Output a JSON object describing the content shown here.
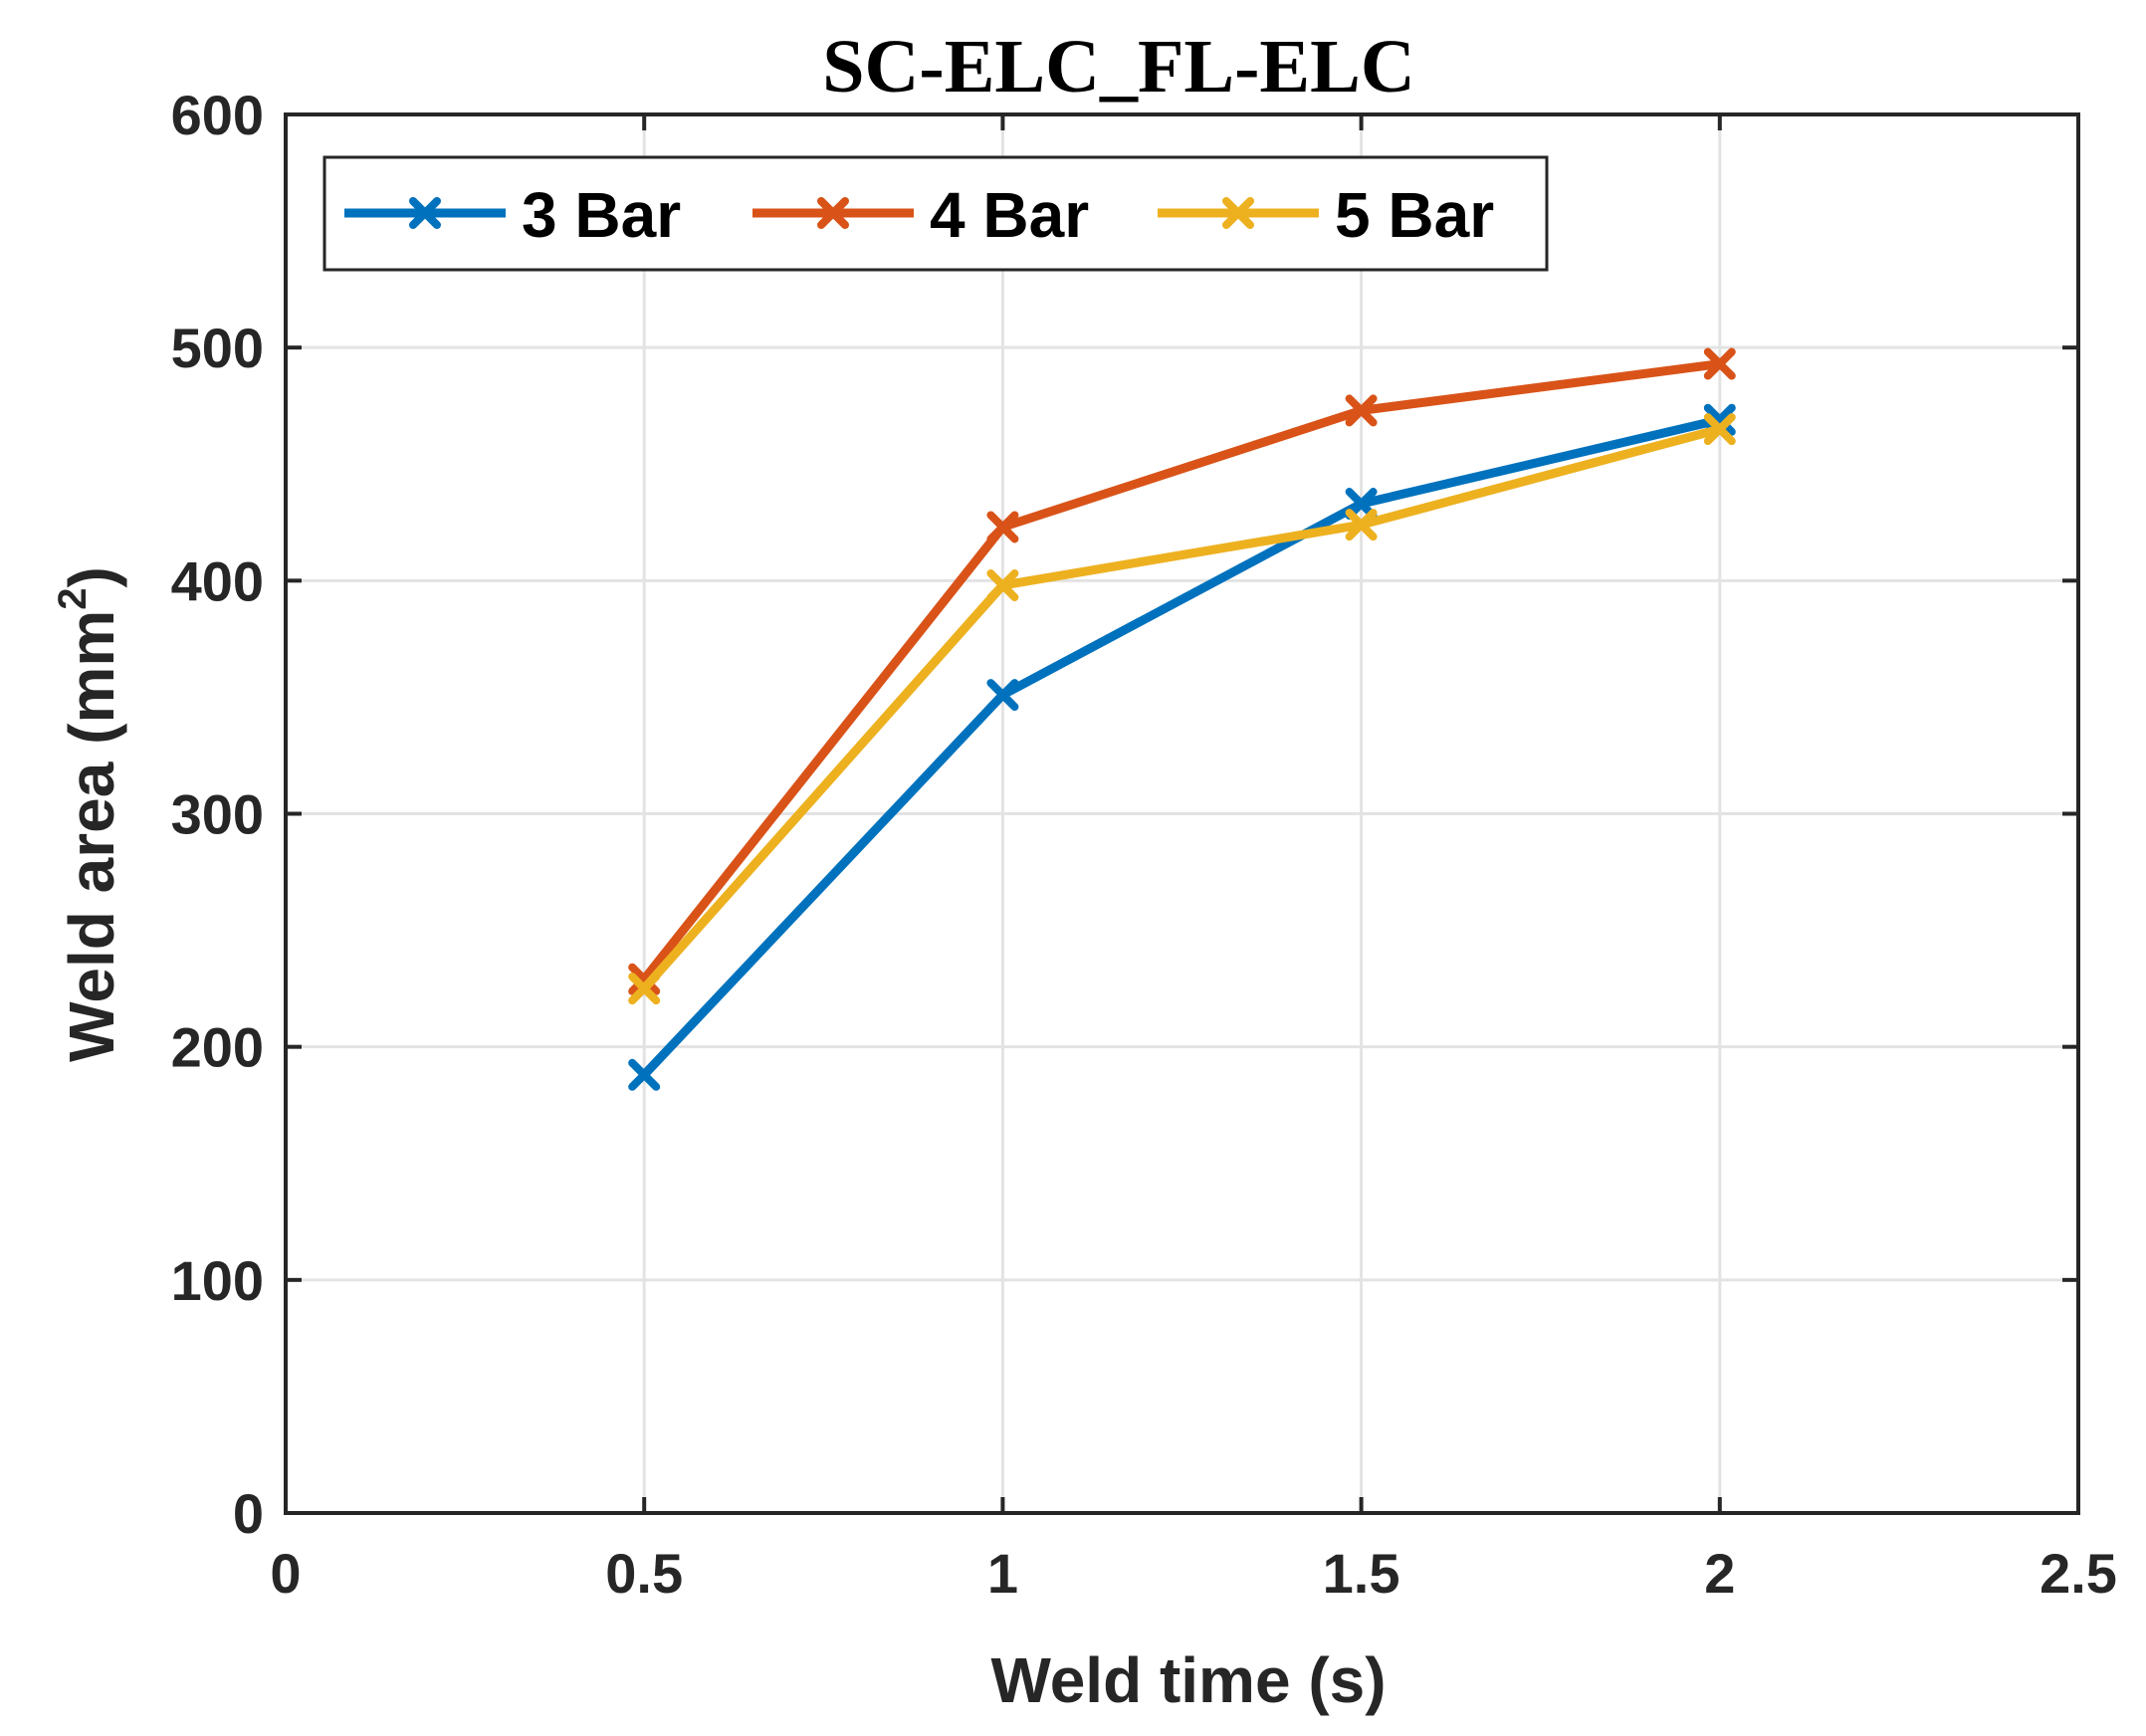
{
  "chart_data": {
    "type": "line",
    "title": "SC-ELC_FL-ELC",
    "xlabel": "Weld time (s)",
    "ylabel_main": "Weld area (mm",
    "ylabel_sup": "2",
    "ylabel_close": ")",
    "xlim": [
      0,
      2.5
    ],
    "ylim": [
      0,
      600
    ],
    "xticks": [
      0,
      0.5,
      1,
      1.5,
      2,
      2.5
    ],
    "xtick_labels": [
      "0",
      "0.5",
      "1",
      "1.5",
      "2",
      "2.5"
    ],
    "yticks": [
      0,
      100,
      200,
      300,
      400,
      500,
      600
    ],
    "ytick_labels": [
      "0",
      "100",
      "200",
      "300",
      "400",
      "500",
      "600"
    ],
    "grid": true,
    "legend_position": "top-left",
    "x": [
      0.5,
      1,
      1.5,
      2
    ],
    "series": [
      {
        "name": "3 Bar",
        "color": "#0072BD",
        "values": [
          188,
          351,
          433,
          469
        ]
      },
      {
        "name": "4 Bar",
        "color": "#D95319",
        "values": [
          229,
          423,
          473,
          493
        ]
      },
      {
        "name": "5 Bar",
        "color": "#EDB120",
        "values": [
          225,
          398,
          424,
          465
        ]
      }
    ]
  }
}
